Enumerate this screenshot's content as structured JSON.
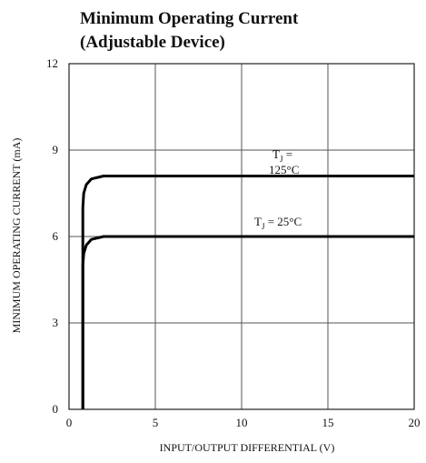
{
  "chart_data": {
    "type": "line",
    "title_line1": "Minimum Operating Current",
    "title_line2": "(Adjustable Device)",
    "xlabel": "INPUT/OUTPUT DIFFERENTIAL (V)",
    "ylabel": "MINIMUM OPERATING CURRENT (mA)",
    "xlim": [
      0,
      20
    ],
    "ylim": [
      0,
      12
    ],
    "xticks": [
      "0",
      "5",
      "10",
      "15",
      "20"
    ],
    "yticks": [
      "0",
      "3",
      "6",
      "9",
      "12"
    ],
    "grid": true,
    "series": [
      {
        "label_t": "T",
        "label_sub": "J",
        "label_rest_line1": " =",
        "label_rest_line2": "125°C",
        "x": [
          0.8,
          0.8,
          0.85,
          1.0,
          1.3,
          2.0,
          5,
          10,
          15,
          20
        ],
        "y": [
          0,
          7.0,
          7.5,
          7.8,
          8.0,
          8.1,
          8.1,
          8.1,
          8.1,
          8.1
        ]
      },
      {
        "label_t": "T",
        "label_sub": "J",
        "label_rest": " = 25°C",
        "x": [
          0.8,
          0.8,
          0.85,
          1.0,
          1.3,
          2.0,
          5,
          10,
          15,
          20
        ],
        "y": [
          0,
          5.0,
          5.4,
          5.7,
          5.9,
          6.0,
          6.0,
          6.0,
          6.0,
          6.0
        ]
      }
    ]
  }
}
